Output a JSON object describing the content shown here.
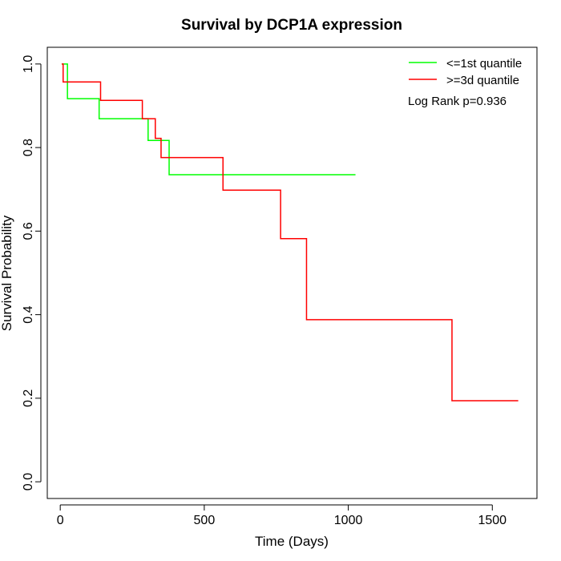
{
  "chart_data": {
    "type": "line",
    "subtype": "kaplan-meier-step",
    "title": "Survival by DCP1A expression",
    "xlabel": "Time (Days)",
    "ylabel": "Survival Probability",
    "xlim": [
      -45,
      1655
    ],
    "ylim": [
      -0.04,
      1.04
    ],
    "x_ticks": [
      0,
      500,
      1000,
      1500
    ],
    "x_tick_labels": [
      "0",
      "500",
      "1000",
      "1500"
    ],
    "y_ticks": [
      0.0,
      0.2,
      0.4,
      0.6,
      0.8,
      1.0
    ],
    "y_tick_labels": [
      "0.0",
      "0.2",
      "0.4",
      "0.6",
      "0.8",
      "1.0"
    ],
    "grid": false,
    "legend_position": "top-right",
    "annotation": "Log Rank p=0.936",
    "series": [
      {
        "name": "<=1st quantile",
        "color": "#00ff00",
        "steps": [
          [
            5,
            1.0
          ],
          [
            25,
            0.917
          ],
          [
            135,
            0.869
          ],
          [
            305,
            0.817
          ],
          [
            378,
            0.735
          ],
          [
            1025,
            0.735
          ]
        ]
      },
      {
        "name": ">=3d quantile",
        "color": "#ff0000",
        "steps": [
          [
            5,
            1.0
          ],
          [
            10,
            0.957
          ],
          [
            140,
            0.913
          ],
          [
            285,
            0.869
          ],
          [
            330,
            0.822
          ],
          [
            350,
            0.776
          ],
          [
            565,
            0.698
          ],
          [
            765,
            0.582
          ],
          [
            855,
            0.388
          ],
          [
            1360,
            0.194
          ],
          [
            1590,
            0.194
          ]
        ]
      }
    ]
  }
}
